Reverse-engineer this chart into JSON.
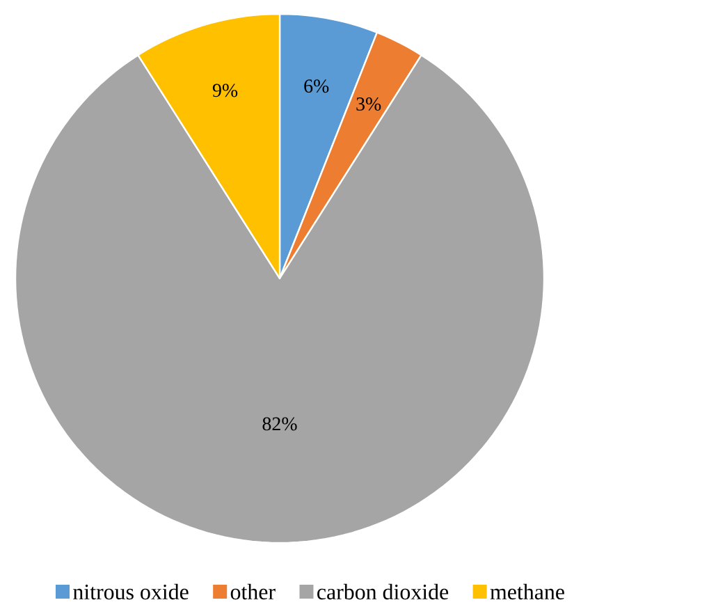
{
  "chart_data": {
    "type": "pie",
    "categories": [
      "nitrous oxide",
      "other",
      "carbon dioxide",
      "methane"
    ],
    "values": [
      6,
      3,
      82,
      9
    ],
    "colors": [
      "#5b9bd5",
      "#ed7d31",
      "#a5a5a5",
      "#ffc000"
    ],
    "value_labels": [
      "6%",
      "3%",
      "82%",
      "9%"
    ],
    "legend": "bottom"
  }
}
